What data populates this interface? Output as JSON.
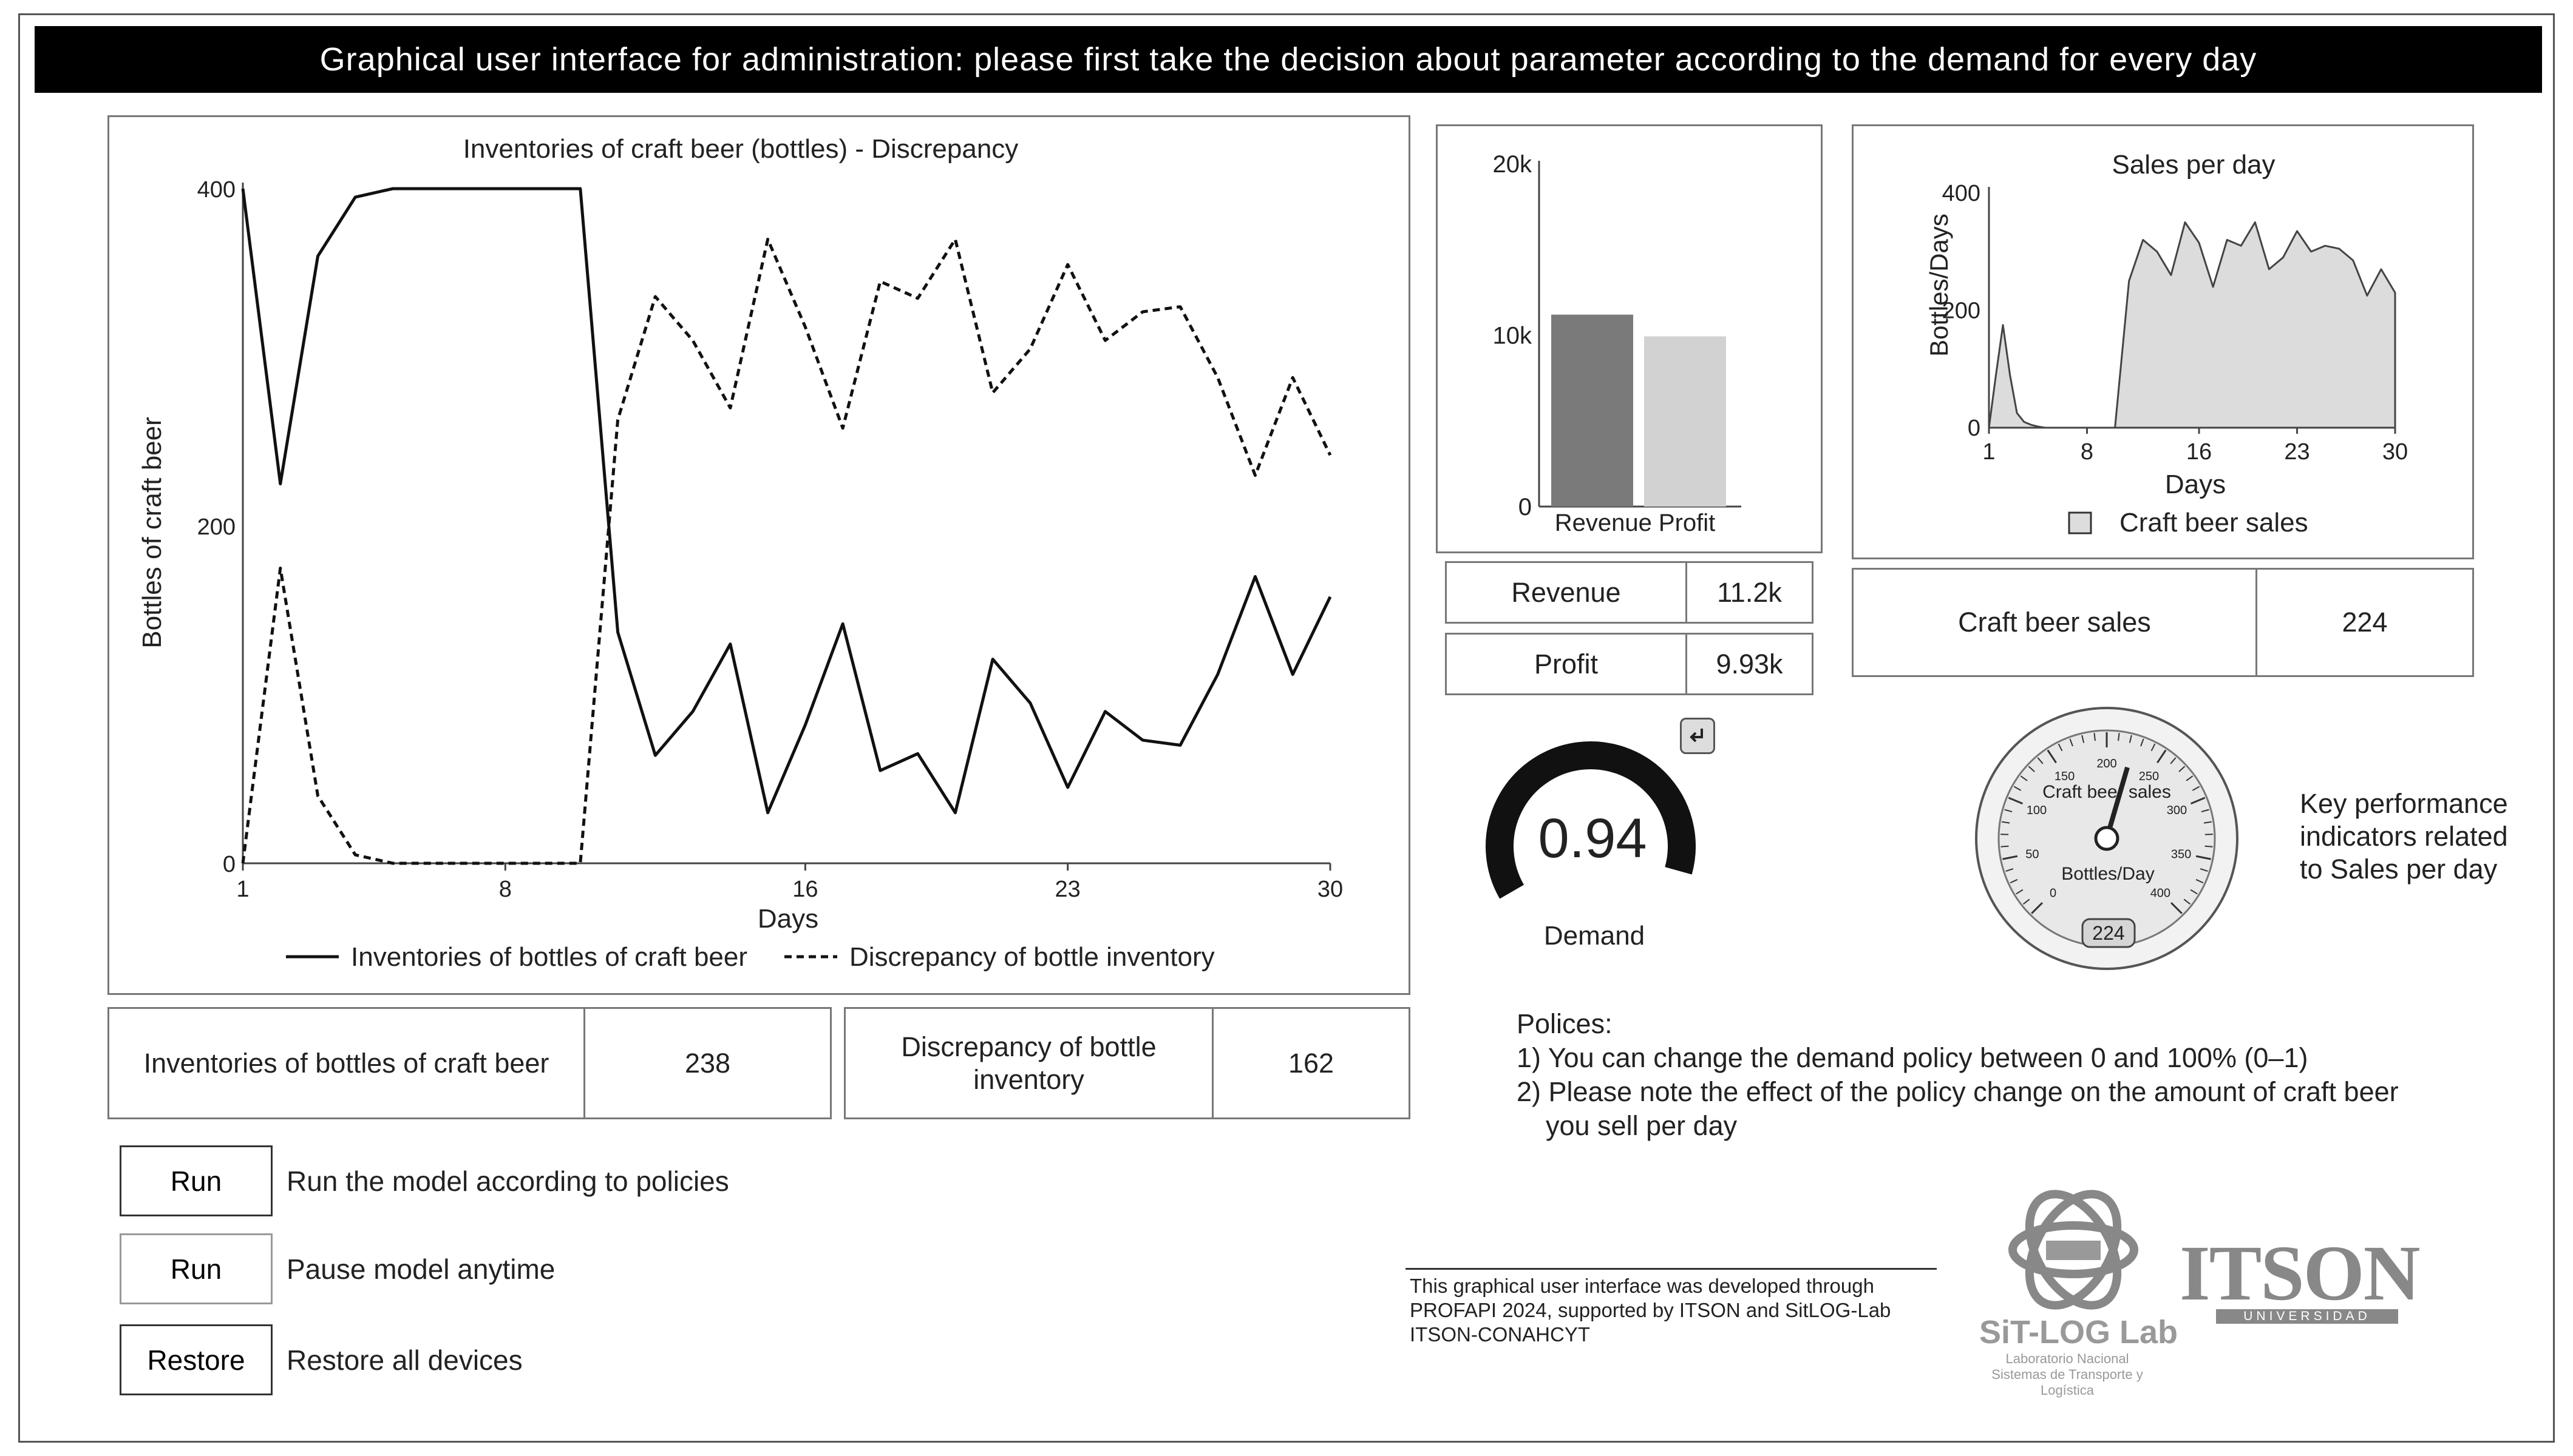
{
  "window": {
    "title": "Graphical user interface for administration: please first take the decision about parameter according to the demand for every day"
  },
  "inventory_chart": {
    "title": "Inventories of craft beer (bottles) - Discrepancy",
    "xlabel": "Days",
    "ylabel": "Bottles of craft beer",
    "legend_a": "Inventories of bottles of craft beer",
    "legend_b": "Discrepancy of bottle inventory"
  },
  "inventory_values": {
    "inventory_label": "Inventories of bottles of craft beer",
    "inventory_value": "238",
    "discrepancy_label": "Discrepancy of bottle inventory",
    "discrepancy_value": "162"
  },
  "revenue_chart": {
    "xlabel": "Revenue Profit"
  },
  "revenue_values": {
    "revenue_label": "Revenue",
    "revenue_value": "11.2k",
    "profit_label": "Profit",
    "profit_value": "9.93k"
  },
  "sales_chart": {
    "title": "Sales per day",
    "xlabel": "Days",
    "ylabel": "Bottles/Days",
    "legend": "Craft beer sales"
  },
  "sales_value": {
    "label": "Craft beer sales",
    "value": "224"
  },
  "demand": {
    "value": "0.94",
    "label": "Demand",
    "fraction": 0.94
  },
  "gauge": {
    "title": "Craft beer sales",
    "unit": "Bottles/Day",
    "value": "224",
    "value_num": 224,
    "min": 0,
    "max": 400,
    "ticks": [
      "0",
      "50",
      "100",
      "150",
      "200",
      "250",
      "300",
      "350",
      "400"
    ]
  },
  "kpi_note": {
    "line1": "Key performance",
    "line2": "indicators related",
    "line3": "to Sales per day"
  },
  "policies": {
    "heading": "Polices:",
    "item1": "1) You can change the demand policy between 0 and 100% (0–1)",
    "item2a": "2) Please note the effect of the policy change on the amount of craft beer",
    "item2b": "you sell per day"
  },
  "controls": {
    "run_label": "Run",
    "run_desc": "Run the model according to policies",
    "pause_label": "Run",
    "pause_desc": "Pause model anytime",
    "restore_label": "Restore",
    "restore_desc": "Restore all devices"
  },
  "credits": {
    "line1": "This graphical user interface was developed through",
    "line2": "PROFAPI 2024, supported by ITSON and SitLOG-Lab",
    "line3": "ITSON-CONAHCYT"
  },
  "logos": {
    "sitlog_name": "SiT-LOG Lab",
    "sitlog_sub1": "Laboratorio Nacional",
    "sitlog_sub2": "Sistemas de Transporte y Logística",
    "itson_name": "ITSON",
    "itson_sub": "UNIVERSIDAD"
  },
  "chart_data": [
    {
      "type": "line",
      "title": "Inventories of craft beer (bottles) - Discrepancy",
      "xlabel": "Days",
      "ylabel": "Bottles of craft beer",
      "xlim": [
        1,
        30
      ],
      "ylim": [
        0,
        400
      ],
      "xticks": [
        1,
        8,
        16,
        23,
        30
      ],
      "yticks": [
        0,
        200,
        400
      ],
      "x": [
        1,
        2,
        3,
        4,
        5,
        6,
        7,
        8,
        9,
        10,
        11,
        12,
        13,
        14,
        15,
        16,
        17,
        18,
        19,
        20,
        21,
        22,
        23,
        24,
        25,
        26,
        27,
        28,
        29,
        30
      ],
      "series": [
        {
          "name": "Inventories of bottles of craft beer",
          "style": "solid",
          "values": [
            400,
            225,
            360,
            395,
            400,
            400,
            400,
            400,
            400,
            400,
            137,
            64,
            90,
            130,
            30,
            82,
            142,
            55,
            65,
            30,
            121,
            95,
            45,
            90,
            73,
            70,
            112,
            170,
            112,
            158
          ]
        },
        {
          "name": "Discrepancy of bottle inventory",
          "style": "dashed",
          "values": [
            0,
            175,
            40,
            5,
            0,
            0,
            0,
            0,
            0,
            0,
            263,
            336,
            310,
            270,
            370,
            318,
            258,
            345,
            335,
            370,
            279,
            305,
            355,
            310,
            327,
            330,
            288,
            230,
            288,
            242
          ]
        }
      ],
      "legend": "bottom"
    },
    {
      "type": "bar",
      "categories": [
        "Revenue",
        "Profit"
      ],
      "values": [
        11200,
        9930
      ],
      "yticks": [
        "0",
        "10k",
        "20k"
      ],
      "ylim": [
        0,
        20000
      ],
      "xlabel": "Revenue Profit"
    },
    {
      "type": "area",
      "title": "Sales per day",
      "xlabel": "Days",
      "ylabel": "Bottles/Days",
      "xlim": [
        1,
        30
      ],
      "ylim": [
        0,
        400
      ],
      "xticks": [
        1,
        8,
        16,
        23,
        30
      ],
      "yticks": [
        0,
        200,
        400
      ],
      "series": [
        {
          "name": "Craft beer sales",
          "x": [
            1,
            1.5,
            2,
            2.5,
            3,
            3.5,
            4,
            4.5,
            5,
            6,
            7,
            8,
            9,
            10,
            11,
            12,
            13,
            14,
            15,
            16,
            17,
            18,
            19,
            20,
            21,
            22,
            23,
            24,
            25,
            26,
            27,
            28,
            29,
            30
          ],
          "values": [
            0,
            90,
            175,
            90,
            25,
            10,
            5,
            2,
            0,
            0,
            0,
            0,
            0,
            0,
            250,
            320,
            300,
            260,
            350,
            315,
            240,
            320,
            310,
            350,
            270,
            290,
            335,
            300,
            310,
            305,
            285,
            225,
            270,
            230
          ]
        }
      ],
      "legend": "bottom"
    }
  ]
}
